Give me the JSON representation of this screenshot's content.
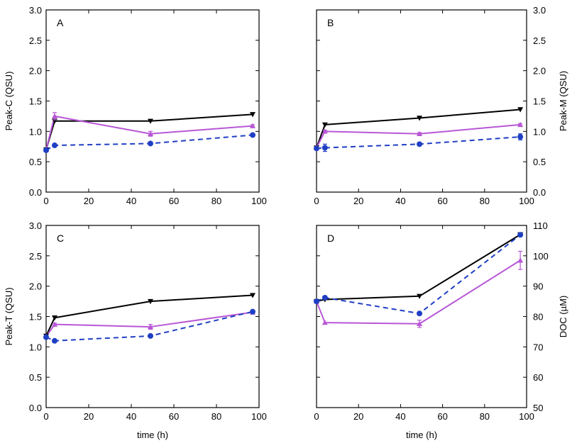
{
  "chart_data": [
    {
      "type": "line",
      "panel_label": "A",
      "xlabel": "",
      "ylabel": "Peak-C (QSU)",
      "xlim": [
        0,
        100
      ],
      "ylim": [
        0,
        3
      ],
      "x_ticks": [
        "0",
        "20",
        "40",
        "60",
        "80",
        "100"
      ],
      "y_ticks": [
        "0.0",
        "0.5",
        "1.0",
        "1.5",
        "2.0",
        "2.5",
        "3.0"
      ],
      "y_axis_side": "left",
      "series": [
        {
          "color": "#000000",
          "line": "solid",
          "marker": "triangle-down",
          "x": [
            0,
            4,
            49,
            97
          ],
          "y": [
            0.7,
            1.17,
            1.17,
            1.28
          ],
          "err": [
            0,
            0,
            0,
            0
          ]
        },
        {
          "color": "#b857d6",
          "line": "solid",
          "marker": "triangle-up",
          "x": [
            0,
            4,
            49,
            97
          ],
          "y": [
            0.7,
            1.25,
            0.96,
            1.09
          ],
          "err": [
            0,
            0.06,
            0.04,
            0.02
          ]
        },
        {
          "color": "#1f3fc4",
          "line": "dashed",
          "marker": "circle",
          "x": [
            0,
            4,
            49,
            97
          ],
          "y": [
            0.69,
            0.77,
            0.8,
            0.94
          ],
          "err": [
            0,
            0,
            0,
            0.02
          ]
        }
      ]
    },
    {
      "type": "line",
      "panel_label": "B",
      "xlabel": "",
      "ylabel": "Peak-M (QSU)",
      "xlim": [
        0,
        100
      ],
      "ylim": [
        0,
        3
      ],
      "x_ticks": [
        "0",
        "20",
        "40",
        "60",
        "80",
        "100"
      ],
      "y_ticks": [
        "0.0",
        "0.5",
        "1.0",
        "1.5",
        "2.0",
        "2.5",
        "3.0"
      ],
      "y_axis_side": "right",
      "series": [
        {
          "color": "#000000",
          "line": "solid",
          "marker": "triangle-down",
          "x": [
            0,
            4,
            49,
            97
          ],
          "y": [
            0.73,
            1.11,
            1.22,
            1.36
          ],
          "err": [
            0,
            0,
            0,
            0
          ]
        },
        {
          "color": "#b857d6",
          "line": "solid",
          "marker": "triangle-up",
          "x": [
            0,
            4,
            49,
            97
          ],
          "y": [
            0.73,
            1.0,
            0.96,
            1.11
          ],
          "err": [
            0,
            0.02,
            0.02,
            0.02
          ]
        },
        {
          "color": "#1f3fc4",
          "line": "dashed",
          "marker": "circle",
          "x": [
            0,
            4,
            49,
            97
          ],
          "y": [
            0.72,
            0.73,
            0.79,
            0.91
          ],
          "err": [
            0,
            0.06,
            0.02,
            0.05
          ]
        }
      ]
    },
    {
      "type": "line",
      "panel_label": "C",
      "xlabel": "time (h)",
      "ylabel": "Peak-T (QSU)",
      "xlim": [
        0,
        100
      ],
      "ylim": [
        0,
        3
      ],
      "x_ticks": [
        "0",
        "20",
        "40",
        "60",
        "80",
        "100"
      ],
      "y_ticks": [
        "0.0",
        "0.5",
        "1.0",
        "1.5",
        "2.0",
        "2.5",
        "3.0"
      ],
      "y_axis_side": "left",
      "series": [
        {
          "color": "#000000",
          "line": "solid",
          "marker": "triangle-down",
          "x": [
            0,
            4,
            49,
            97
          ],
          "y": [
            1.18,
            1.48,
            1.75,
            1.85
          ],
          "err": [
            0,
            0,
            0,
            0
          ]
        },
        {
          "color": "#b857d6",
          "line": "solid",
          "marker": "triangle-up",
          "x": [
            0,
            4,
            49,
            97
          ],
          "y": [
            1.17,
            1.37,
            1.33,
            1.57
          ],
          "err": [
            0,
            0.02,
            0.04,
            0.03
          ]
        },
        {
          "color": "#1f3fc4",
          "line": "dashed",
          "marker": "circle",
          "x": [
            0,
            4,
            49,
            97
          ],
          "y": [
            1.16,
            1.1,
            1.18,
            1.58
          ],
          "err": [
            0,
            0,
            0.02,
            0.02
          ]
        }
      ]
    },
    {
      "type": "line",
      "panel_label": "D",
      "xlabel": "time (h)",
      "ylabel": "DOC (µM)",
      "xlim": [
        0,
        100
      ],
      "ylim": [
        50,
        110
      ],
      "x_ticks": [
        "0",
        "20",
        "40",
        "60",
        "80",
        "100"
      ],
      "y_ticks": [
        "50",
        "60",
        "70",
        "80",
        "90",
        "100",
        "110"
      ],
      "y_axis_side": "right",
      "series": [
        {
          "color": "#000000",
          "line": "solid",
          "marker": "triangle-down",
          "x": [
            0,
            4,
            49,
            97
          ],
          "y": [
            85.0,
            85.6,
            86.7,
            107.0
          ],
          "err": [
            0,
            0,
            0,
            0
          ]
        },
        {
          "color": "#b857d6",
          "line": "solid",
          "marker": "triangle-up",
          "x": [
            0,
            4,
            49,
            97
          ],
          "y": [
            85.0,
            78.0,
            77.6,
            98.5
          ],
          "err": [
            0,
            0,
            1.2,
            3.0
          ]
        },
        {
          "color": "#1f3fc4",
          "line": "dashed",
          "marker": "circle",
          "x": [
            0,
            4,
            49,
            97
          ],
          "y": [
            85.0,
            86.2,
            81.0,
            106.9
          ],
          "err": [
            0,
            0,
            0,
            0
          ]
        }
      ]
    }
  ]
}
